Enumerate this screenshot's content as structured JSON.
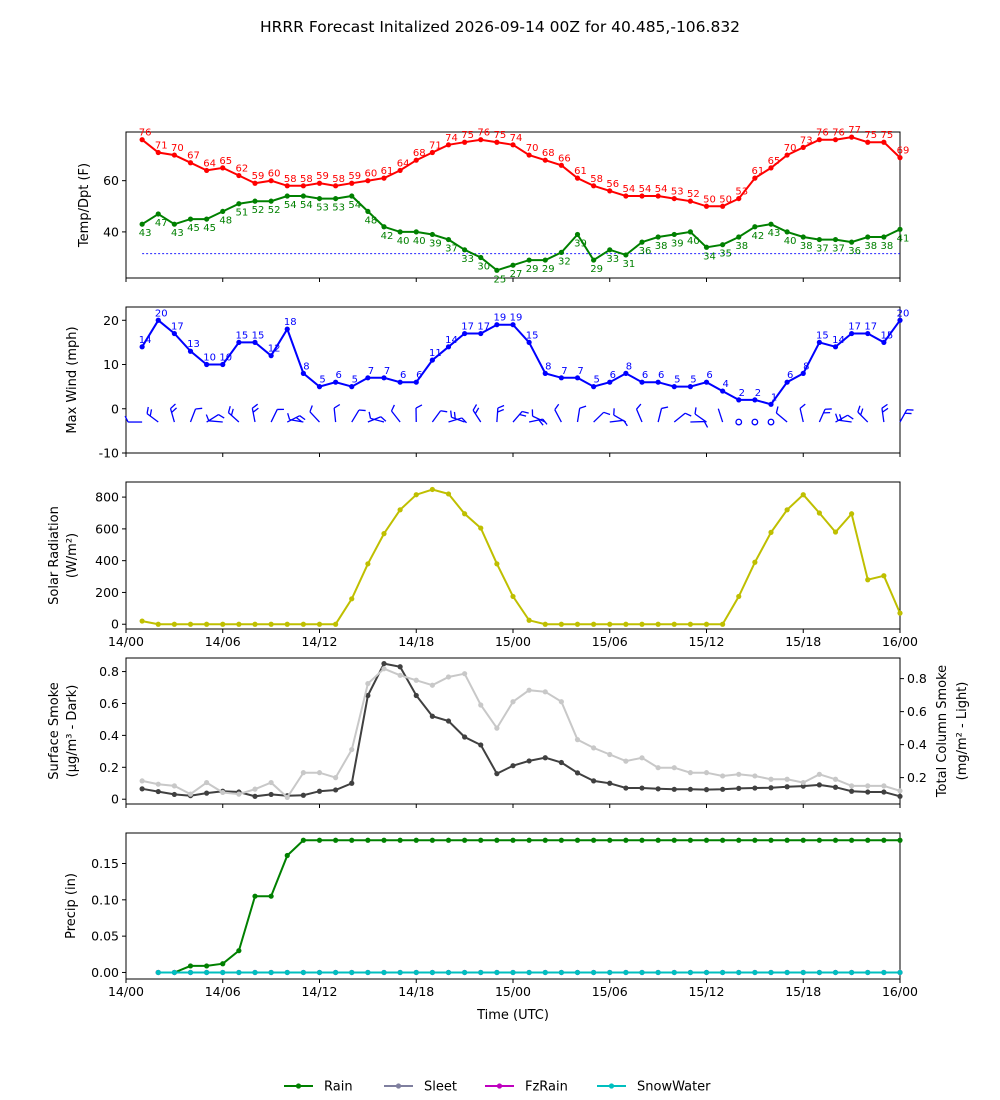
{
  "title": "HRRR Forecast Initalized 2026-09-14 00Z for 40.485,-106.832",
  "colors": {
    "temp": "#ff0000",
    "dewpoint": "#008000",
    "wind": "#0000ff",
    "solar": "#bfbf00",
    "smoke_dark": "#404040",
    "smoke_light": "#c8c8c8",
    "rain": "#008000",
    "sleet": "#7f7f9f",
    "fzrain": "#bf00bf",
    "snowwater": "#00bfbf"
  },
  "xaxis": {
    "tick_labels": [
      "14/00",
      "14/06",
      "14/12",
      "14/18",
      "15/00",
      "15/06",
      "15/12",
      "15/18",
      "16/00"
    ],
    "tick_hours": [
      0,
      6,
      12,
      18,
      24,
      30,
      36,
      42,
      48
    ],
    "label": "Time (UTC)",
    "range": [
      0,
      48
    ]
  },
  "legend": [
    "Rain",
    "Sleet",
    "FzRain",
    "SnowWater"
  ],
  "chart_data": [
    {
      "type": "line",
      "ylabel": "Temp/Dpt (F)",
      "ylim": [
        22,
        79
      ],
      "yticks": [
        40,
        60
      ],
      "hline": 31.5,
      "x_hours_start": 1,
      "series": [
        {
          "key": "temp",
          "labeled": true,
          "values": [
            76,
            71,
            70,
            67,
            64,
            65,
            62,
            59,
            60,
            58,
            58,
            59,
            58,
            59,
            60,
            61,
            64,
            68,
            71,
            74,
            75,
            76,
            75,
            74,
            70,
            68,
            66,
            61,
            58,
            56,
            54,
            54,
            54,
            53,
            52,
            50,
            50,
            53,
            61,
            65,
            70,
            73,
            76,
            76,
            77,
            75,
            75,
            69
          ]
        },
        {
          "key": "dewpoint",
          "labeled": true,
          "values": [
            43,
            47,
            43,
            45,
            45,
            48,
            51,
            52,
            52,
            54,
            54,
            53,
            53,
            54,
            48,
            42,
            40,
            40,
            39,
            37,
            33,
            30,
            25,
            27,
            29,
            29,
            32,
            39,
            29,
            33,
            31,
            36,
            38,
            39,
            40,
            34,
            35,
            38,
            42,
            43,
            40,
            38,
            37,
            37,
            36,
            38,
            38,
            41
          ]
        }
      ]
    },
    {
      "type": "line",
      "ylabel": "Max Wind (mph)",
      "ylim": [
        -10,
        23
      ],
      "yticks": [
        -10,
        0,
        10,
        20
      ],
      "x_hours_start": 1,
      "series": [
        {
          "key": "wind",
          "labeled": true,
          "values": [
            14,
            20,
            17,
            13,
            10,
            10,
            15,
            15,
            12,
            18,
            8,
            5,
            6,
            5,
            7,
            7,
            6,
            6,
            11,
            14,
            17,
            17,
            19,
            19,
            15,
            8,
            7,
            7,
            5,
            6,
            8,
            6,
            6,
            5,
            5,
            6,
            4,
            2,
            2,
            1,
            6,
            8,
            15,
            14,
            17,
            17,
            15,
            20
          ]
        }
      ],
      "barbs_note": "wind barbs plotted along y=-3"
    },
    {
      "type": "line",
      "ylabel": "Solar Radiation (W/m²)",
      "ylim": [
        -30,
        895
      ],
      "yticks": [
        0,
        200,
        400,
        600,
        800
      ],
      "x_hours_start": 1,
      "series": [
        {
          "key": "solar",
          "values": [
            20,
            0,
            0,
            0,
            0,
            0,
            0,
            0,
            0,
            0,
            0,
            0,
            0,
            160,
            380,
            570,
            720,
            815,
            848,
            820,
            695,
            605,
            380,
            175,
            25,
            0,
            0,
            0,
            0,
            0,
            0,
            0,
            0,
            0,
            0,
            0,
            0,
            175,
            390,
            578,
            720,
            815,
            700,
            580,
            695,
            280,
            305,
            70
          ]
        }
      ]
    },
    {
      "type": "line",
      "ylabel": "Surface Smoke (μg/m³ - Dark)",
      "ylabel_right": "Total Column Smoke (mg/m² - Light)",
      "ylim": [
        -0.03,
        0.885
      ],
      "yticks": [
        0.0,
        0.2,
        0.4,
        0.6,
        0.8
      ],
      "ylim_right": [
        0.04,
        0.925
      ],
      "yticks_right": [
        0.2,
        0.4,
        0.6,
        0.8
      ],
      "x_hours_start": 1,
      "series": [
        {
          "key": "smoke_dark",
          "axis": "left",
          "values": [
            0.065,
            0.048,
            0.03,
            0.022,
            0.038,
            0.05,
            0.045,
            0.018,
            0.03,
            0.022,
            0.025,
            0.05,
            0.058,
            0.1,
            0.65,
            0.85,
            0.83,
            0.65,
            0.52,
            0.49,
            0.39,
            0.34,
            0.16,
            0.21,
            0.24,
            0.26,
            0.23,
            0.165,
            0.115,
            0.1,
            0.07,
            0.07,
            0.065,
            0.062,
            0.062,
            0.06,
            0.062,
            0.068,
            0.07,
            0.072,
            0.078,
            0.082,
            0.09,
            0.075,
            0.05,
            0.045,
            0.045,
            0.018
          ]
        },
        {
          "key": "smoke_light",
          "axis": "right",
          "values": [
            0.18,
            0.16,
            0.15,
            0.1,
            0.17,
            0.11,
            0.1,
            0.13,
            0.17,
            0.08,
            0.23,
            0.23,
            0.2,
            0.37,
            0.77,
            0.86,
            0.82,
            0.79,
            0.76,
            0.81,
            0.83,
            0.64,
            0.5,
            0.66,
            0.73,
            0.72,
            0.66,
            0.43,
            0.38,
            0.34,
            0.3,
            0.32,
            0.26,
            0.26,
            0.23,
            0.23,
            0.21,
            0.22,
            0.21,
            0.19,
            0.19,
            0.17,
            0.22,
            0.19,
            0.15,
            0.15,
            0.15,
            0.12
          ]
        }
      ]
    },
    {
      "type": "line",
      "ylabel": "Precip (in)",
      "ylim": [
        -0.009,
        0.192
      ],
      "yticks": [
        0.0,
        0.05,
        0.1,
        0.15
      ],
      "ytick_labels": [
        "0.00",
        "0.05",
        "0.10",
        "0.15"
      ],
      "x_hours_start": 2,
      "series": [
        {
          "key": "rain",
          "name": "Rain",
          "values": [
            0.0,
            0.0,
            0.009,
            0.009,
            0.012,
            0.03,
            0.105,
            0.105,
            0.161,
            0.182,
            0.182,
            0.182,
            0.182,
            0.182,
            0.182,
            0.182,
            0.182,
            0.182,
            0.182,
            0.182,
            0.182,
            0.182,
            0.182,
            0.182,
            0.182,
            0.182,
            0.182,
            0.182,
            0.182,
            0.182,
            0.182,
            0.182,
            0.182,
            0.182,
            0.182,
            0.182,
            0.182,
            0.182,
            0.182,
            0.182,
            0.182,
            0.182,
            0.182,
            0.182,
            0.182,
            0.182,
            0.182
          ]
        },
        {
          "key": "sleet",
          "name": "Sleet",
          "values": [
            0,
            0,
            0,
            0,
            0,
            0,
            0,
            0,
            0,
            0,
            0,
            0,
            0,
            0,
            0,
            0,
            0,
            0,
            0,
            0,
            0,
            0,
            0,
            0,
            0,
            0,
            0,
            0,
            0,
            0,
            0,
            0,
            0,
            0,
            0,
            0,
            0,
            0,
            0,
            0,
            0,
            0,
            0,
            0,
            0,
            0,
            0
          ]
        },
        {
          "key": "fzrain",
          "name": "FzRain",
          "values": [
            0,
            0,
            0,
            0,
            0,
            0,
            0,
            0,
            0,
            0,
            0,
            0,
            0,
            0,
            0,
            0,
            0,
            0,
            0,
            0,
            0,
            0,
            0,
            0,
            0,
            0,
            0,
            0,
            0,
            0,
            0,
            0,
            0,
            0,
            0,
            0,
            0,
            0,
            0,
            0,
            0,
            0,
            0,
            0,
            0,
            0,
            0
          ]
        },
        {
          "key": "snowwater",
          "name": "SnowWater",
          "values": [
            0,
            0,
            0,
            0,
            0,
            0,
            0,
            0,
            0,
            0,
            0,
            0,
            0,
            0,
            0,
            0,
            0,
            0,
            0,
            0,
            0,
            0,
            0,
            0,
            0,
            0,
            0,
            0,
            0,
            0,
            0,
            0,
            0,
            0,
            0,
            0,
            0,
            0,
            0,
            0,
            0,
            0,
            0,
            0,
            0,
            0,
            0
          ]
        }
      ]
    }
  ]
}
